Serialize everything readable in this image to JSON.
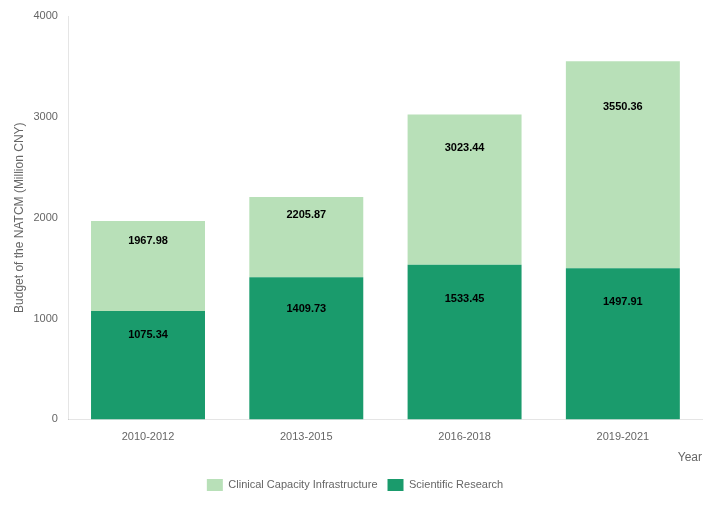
{
  "chart_data": {
    "type": "bar",
    "categories": [
      "2010-2012",
      "2013-2015",
      "2016-2018",
      "2019-2021"
    ],
    "series": [
      {
        "name": "Scientific Research",
        "color": "#1A9B6C",
        "values": [
          1075.34,
          1409.73,
          1533.45,
          1497.91
        ],
        "data_labels": true
      },
      {
        "name": "Clinical Capacity Infrastructure",
        "color": "#B8E0B8",
        "values": [
          892.64,
          796.14,
          1489.99,
          2052.45
        ]
      }
    ],
    "totals": [
      1967.98,
      2205.87,
      3023.44,
      3550.36
    ],
    "stacked": true,
    "ylabel": "Budget of the NATCM (Million CNY)",
    "xlabel": "Year",
    "ylim": [
      0,
      4000
    ],
    "yticks": [
      0,
      1000,
      2000,
      3000,
      4000
    ],
    "grid": false,
    "legend": "bottom"
  }
}
